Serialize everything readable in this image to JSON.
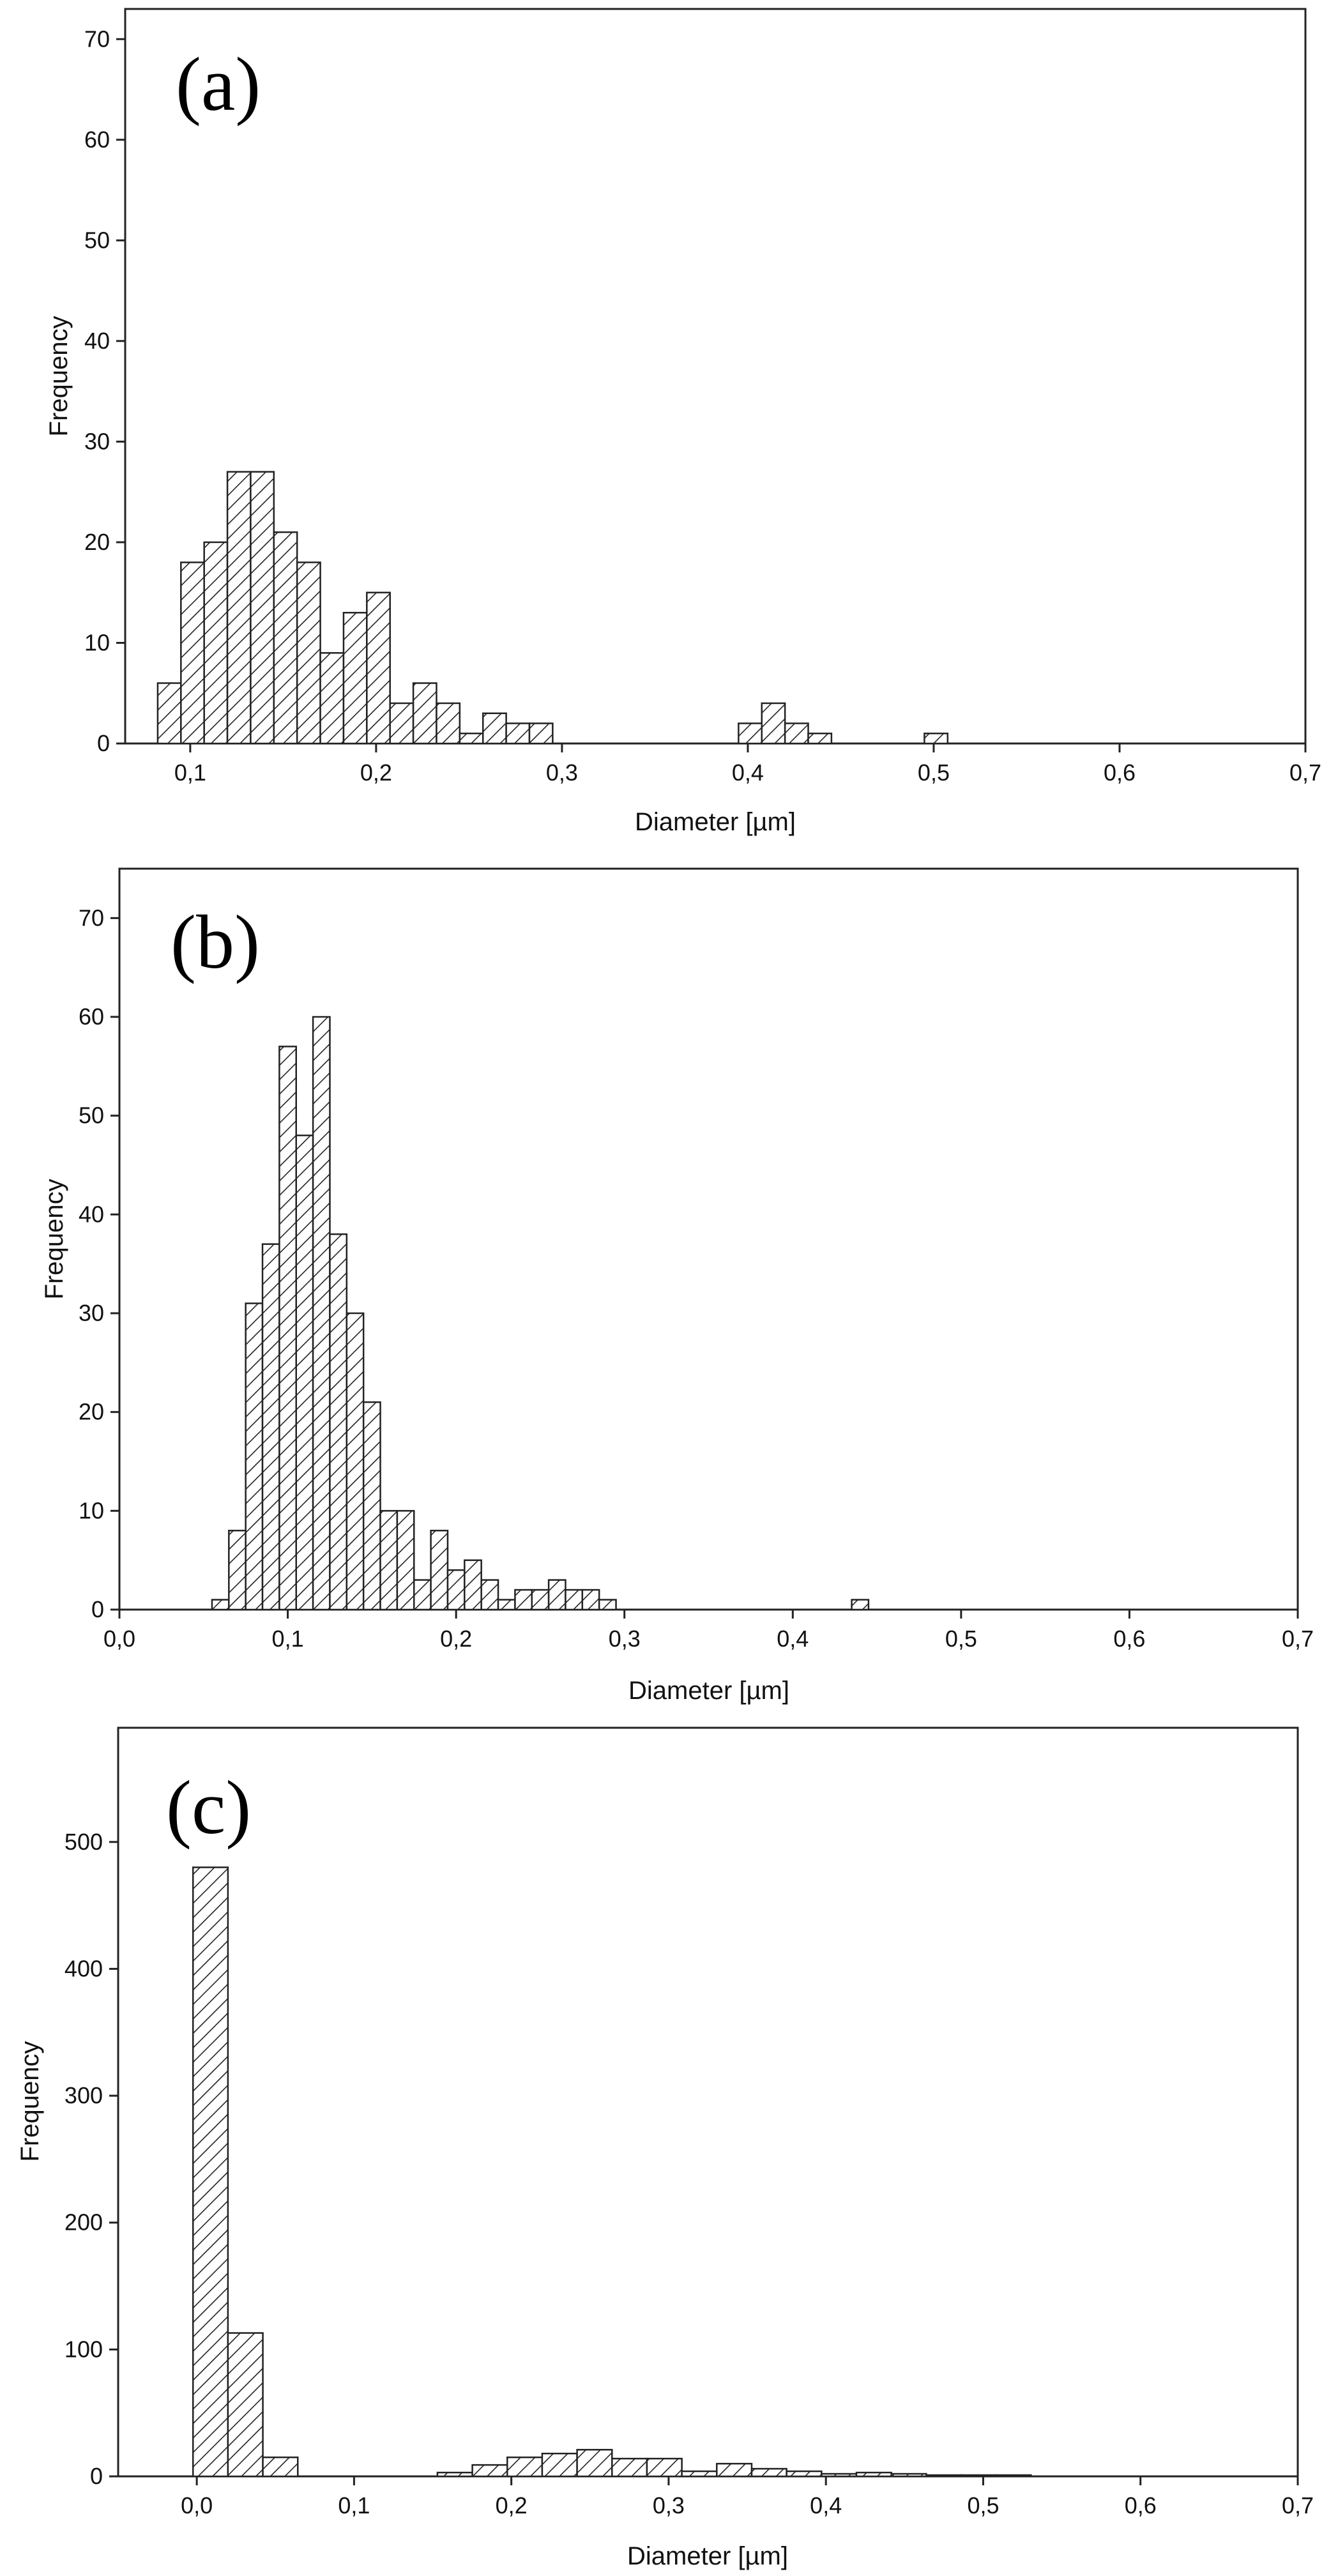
{
  "chart_data": [
    {
      "type": "bar",
      "panel": "(a)",
      "xlabel": "Diameter [µm]",
      "ylabel": "Frequency",
      "xlim": [
        0.065,
        0.7
      ],
      "ylim": [
        0,
        73
      ],
      "xticks": [
        0.1,
        0.2,
        0.3,
        0.4,
        0.5,
        0.6,
        0.7
      ],
      "xtick_labels": [
        "0,1",
        "0,2",
        "0,3",
        "0,4",
        "0,5",
        "0,6",
        "0,7"
      ],
      "yticks": [
        0,
        10,
        20,
        30,
        40,
        50,
        60,
        70
      ],
      "ytick_labels": [
        "0",
        "10",
        "20",
        "30",
        "40",
        "50",
        "60",
        "70"
      ],
      "bin_width": 0.0125,
      "bin_starts": [
        0.0825,
        0.095,
        0.1075,
        0.12,
        0.1325,
        0.145,
        0.1575,
        0.17,
        0.1825,
        0.195,
        0.2075,
        0.22,
        0.2325,
        0.245,
        0.2575,
        0.27,
        0.2825,
        0.295,
        0.3075,
        0.32,
        0.3325,
        0.345,
        0.3575,
        0.37,
        0.3825,
        0.395,
        0.4075,
        0.42,
        0.4325,
        0.445,
        0.4575,
        0.47,
        0.4825,
        0.495,
        0.5075
      ],
      "values": [
        6,
        18,
        20,
        27,
        27,
        21,
        18,
        9,
        13,
        15,
        4,
        6,
        4,
        1,
        3,
        2,
        2,
        0,
        0,
        0,
        0,
        0,
        0,
        0,
        0,
        2,
        4,
        2,
        1,
        0,
        0,
        0,
        0,
        1,
        0
      ]
    },
    {
      "type": "bar",
      "panel": "(b)",
      "xlabel": "Diameter [µm]",
      "ylabel": "Frequency",
      "xlim": [
        0,
        0.7
      ],
      "ylim": [
        0,
        75
      ],
      "xticks": [
        0,
        0.1,
        0.2,
        0.3,
        0.4,
        0.5,
        0.6,
        0.7
      ],
      "xtick_labels": [
        "0,0",
        "0,1",
        "0,2",
        "0,3",
        "0,4",
        "0,5",
        "0,6",
        "0,7"
      ],
      "yticks": [
        0,
        10,
        20,
        30,
        40,
        50,
        60,
        70
      ],
      "ytick_labels": [
        "0",
        "10",
        "20",
        "30",
        "40",
        "50",
        "60",
        "70"
      ],
      "bin_width": 0.01,
      "bin_starts": [
        0.045,
        0.055,
        0.065,
        0.075,
        0.085,
        0.095,
        0.105,
        0.115,
        0.125,
        0.135,
        0.145,
        0.155,
        0.165,
        0.175,
        0.185,
        0.195,
        0.205,
        0.215,
        0.225,
        0.235,
        0.245,
        0.255,
        0.265,
        0.275,
        0.285,
        0.295,
        0.305,
        0.315,
        0.325,
        0.335,
        0.345,
        0.355,
        0.365,
        0.375,
        0.385,
        0.395,
        0.405,
        0.415,
        0.425,
        0.435
      ],
      "values": [
        0,
        1,
        8,
        31,
        37,
        57,
        48,
        60,
        38,
        30,
        21,
        10,
        10,
        3,
        8,
        4,
        5,
        3,
        1,
        2,
        2,
        3,
        2,
        2,
        1,
        0,
        0,
        0,
        0,
        0,
        0,
        0,
        0,
        0,
        0,
        0,
        0,
        0,
        0,
        1
      ]
    },
    {
      "type": "bar",
      "panel": "(c)",
      "xlabel": "Diameter [µm]",
      "ylabel": "Frequency",
      "xlim": [
        -0.05,
        0.7
      ],
      "ylim": [
        0,
        590
      ],
      "xticks": [
        0,
        0.1,
        0.2,
        0.3,
        0.4,
        0.5,
        0.6,
        0.7
      ],
      "xtick_labels": [
        "0,0",
        "0,1",
        "0,2",
        "0,3",
        "0,4",
        "0,5",
        "0,6",
        "0,7"
      ],
      "yticks": [
        0,
        100,
        200,
        300,
        400,
        500
      ],
      "ytick_labels": [
        "0",
        "100",
        "200",
        "300",
        "400",
        "500"
      ],
      "bin_width": 0.0222,
      "bin_starts": [
        -0.0024,
        0.0198,
        0.042,
        0.0642,
        0.0864,
        0.1086,
        0.1308,
        0.153,
        0.1752,
        0.1974,
        0.2196,
        0.2418,
        0.264,
        0.2862,
        0.3084,
        0.3306,
        0.3528,
        0.375,
        0.3972,
        0.4194,
        0.4416,
        0.4638,
        0.486,
        0.5082,
        0.5304,
        0.5526,
        0.5748,
        0.597,
        0.6192,
        0.6414
      ],
      "values": [
        480,
        113,
        15,
        0,
        0,
        0,
        0,
        3,
        9,
        15,
        18,
        21,
        14,
        14,
        4,
        10,
        6,
        4,
        2,
        3,
        2,
        1,
        1,
        1,
        0,
        0,
        0,
        0,
        0,
        0
      ]
    }
  ]
}
